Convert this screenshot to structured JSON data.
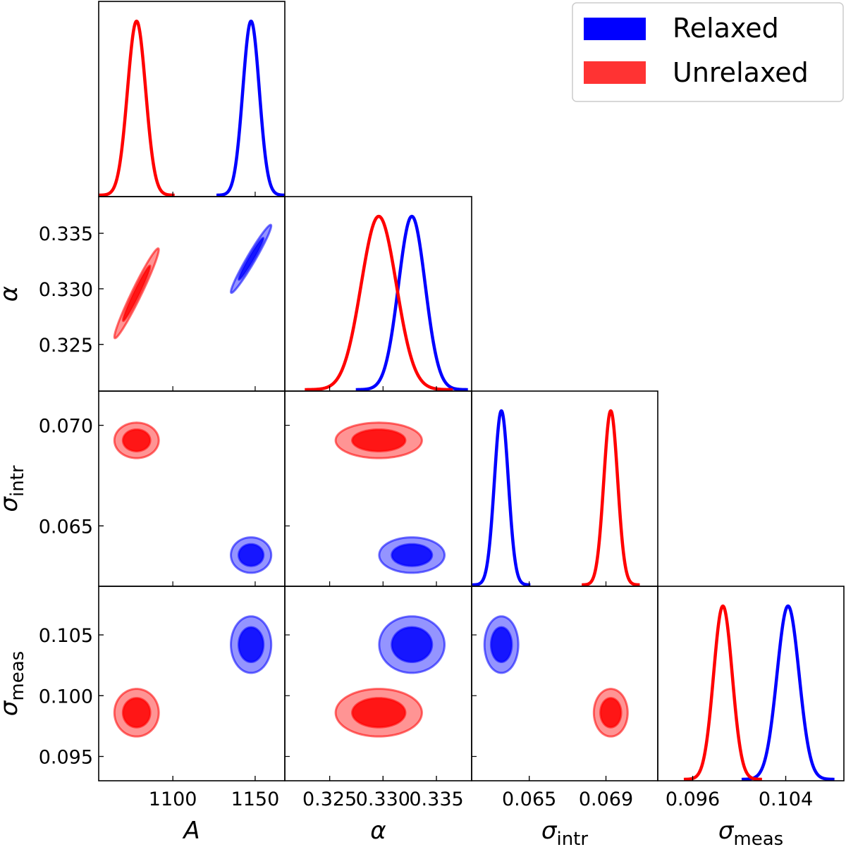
{
  "chart_data": {
    "type": "corner",
    "title": "",
    "colors": {
      "relaxed": "#0000ff",
      "unrelaxed": "#ff0000"
    },
    "legend": {
      "position": "top-right",
      "entries": [
        "Relaxed",
        "Unrelaxed"
      ]
    },
    "parameters": [
      {
        "key": "A",
        "label": "A",
        "sub": "",
        "range": [
          1055,
          1168
        ],
        "ticks": [
          1100,
          1150
        ],
        "tick_labels": [
          "1100",
          "1150"
        ]
      },
      {
        "key": "alpha",
        "label": "α",
        "sub": "",
        "range": [
          0.3208,
          0.3383
        ],
        "ticks": [
          0.325,
          0.33,
          0.335
        ],
        "tick_labels": [
          "0.325",
          "0.330",
          "0.335"
        ]
      },
      {
        "key": "sigma_intr",
        "label": "σ",
        "sub": "intr",
        "range": [
          0.062,
          0.0717
        ],
        "ticks": [
          0.065,
          0.07
        ],
        "tick_labels": [
          "0.065",
          "0.070"
        ],
        "x_tick_labels": [
          "0.065",
          "0.069"
        ],
        "x_ticks": [
          0.065,
          0.069
        ]
      },
      {
        "key": "sigma_meas",
        "label": "σ",
        "sub": "meas",
        "range": [
          0.093,
          0.109
        ],
        "ticks": [
          0.095,
          0.1,
          0.105
        ],
        "tick_labels": [
          "0.095",
          "0.100",
          "0.105"
        ],
        "x_ticks": [
          0.096,
          0.104
        ],
        "x_tick_labels": [
          "0.096",
          "0.104"
        ]
      }
    ],
    "series": [
      {
        "name": "Relaxed",
        "color": "#0000ff",
        "mean": [
          1147.5,
          0.3327,
          0.06355,
          0.1042
        ],
        "sd": [
          5.0,
          0.00125,
          0.00036,
          0.00095
        ],
        "corr": {
          "0-1": 0.97
        }
      },
      {
        "name": "Unrelaxed",
        "color": "#ff0000",
        "mean": [
          1078.0,
          0.3296,
          0.06925,
          0.0986
        ],
        "sd": [
          5.5,
          0.00165,
          0.00036,
          0.0008
        ],
        "corr": {
          "0-1": 0.97
        }
      }
    ]
  }
}
